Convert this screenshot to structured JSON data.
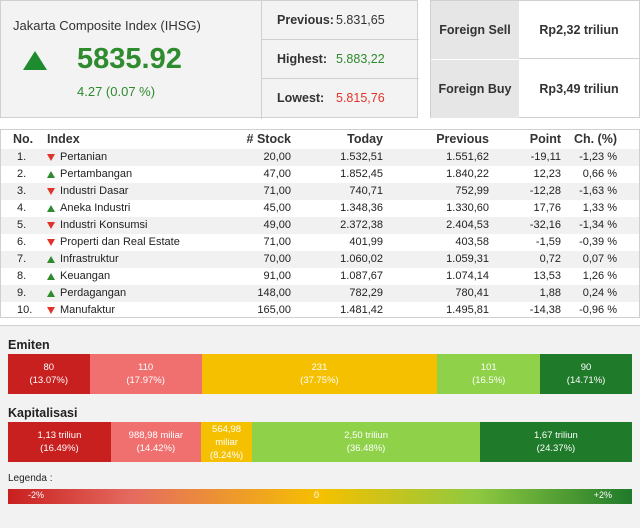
{
  "summary": {
    "title": "Jakarta Composite Index (IHSG)",
    "value": "5835.92",
    "change": "4.27 (0.07 %)",
    "stats": [
      {
        "label": "Previous:",
        "value": "5.831,65",
        "color": "#333333"
      },
      {
        "label": "Highest:",
        "value": "5.883,22",
        "color": "#2e8b2e"
      },
      {
        "label": "Lowest:",
        "value": "5.815,76",
        "color": "#e0342a"
      }
    ]
  },
  "foreign": [
    {
      "label": "Foreign Sell",
      "value": "Rp2,32 triliun"
    },
    {
      "label": "Foreign Buy",
      "value": "Rp3,49 triliun"
    }
  ],
  "table": {
    "headers": [
      "No.",
      "Index",
      "# Stock",
      "Today",
      "Previous",
      "Point",
      "Ch. (%)"
    ],
    "rows": [
      {
        "no": "1.",
        "dir": "down",
        "index": "Pertanian",
        "stock": "20,00",
        "today": "1.532,51",
        "prev": "1.551,62",
        "point": "-19,11",
        "ch": "-1,23 %"
      },
      {
        "no": "2.",
        "dir": "up",
        "index": "Pertambangan",
        "stock": "47,00",
        "today": "1.852,45",
        "prev": "1.840,22",
        "point": "12,23",
        "ch": "0,66 %"
      },
      {
        "no": "3.",
        "dir": "down",
        "index": "Industri Dasar",
        "stock": "71,00",
        "today": "740,71",
        "prev": "752,99",
        "point": "-12,28",
        "ch": "-1,63 %"
      },
      {
        "no": "4.",
        "dir": "up",
        "index": "Aneka Industri",
        "stock": "45,00",
        "today": "1.348,36",
        "prev": "1.330,60",
        "point": "17,76",
        "ch": "1,33 %"
      },
      {
        "no": "5.",
        "dir": "down",
        "index": "Industri Konsumsi",
        "stock": "49,00",
        "today": "2.372,38",
        "prev": "2.404,53",
        "point": "-32,16",
        "ch": "-1,34 %"
      },
      {
        "no": "6.",
        "dir": "down",
        "index": "Properti dan Real Estate",
        "stock": "71,00",
        "today": "401,99",
        "prev": "403,58",
        "point": "-1,59",
        "ch": "-0,39 %"
      },
      {
        "no": "7.",
        "dir": "up",
        "index": "Infrastruktur",
        "stock": "70,00",
        "today": "1.060,02",
        "prev": "1.059,31",
        "point": "0,72",
        "ch": "0,07 %"
      },
      {
        "no": "8.",
        "dir": "up",
        "index": "Keuangan",
        "stock": "91,00",
        "today": "1.087,67",
        "prev": "1.074,14",
        "point": "13,53",
        "ch": "1,26 %"
      },
      {
        "no": "9.",
        "dir": "up",
        "index": "Perdagangan",
        "stock": "148,00",
        "today": "782,29",
        "prev": "780,41",
        "point": "1,88",
        "ch": "0,24 %"
      },
      {
        "no": "10.",
        "dir": "down",
        "index": "Manufaktur",
        "stock": "165,00",
        "today": "1.481,42",
        "prev": "1.495,81",
        "point": "-14,38",
        "ch": "-0,96 %"
      }
    ]
  },
  "emiten": {
    "title": "Emiten",
    "segments": [
      {
        "value": "80",
        "pct": "(13.07%)",
        "share": 13.07,
        "color": "#c81f1f"
      },
      {
        "value": "110",
        "pct": "(17.97%)",
        "share": 17.97,
        "color": "#f07070"
      },
      {
        "value": "231",
        "pct": "(37.75%)",
        "share": 37.75,
        "color": "#f5c000"
      },
      {
        "value": "101",
        "pct": "(16.5%)",
        "share": 16.5,
        "color": "#8fd24a"
      },
      {
        "value": "90",
        "pct": "(14.71%)",
        "share": 14.71,
        "color": "#1f7a2a"
      }
    ]
  },
  "kapitalisasi": {
    "title": "Kapitalisasi",
    "segments": [
      {
        "value": "1,13 triliun",
        "pct": "(16.49%)",
        "share": 16.49,
        "color": "#c81f1f"
      },
      {
        "value": "988,98 miliar",
        "pct": "(14.42%)",
        "share": 14.42,
        "color": "#f07070"
      },
      {
        "value": "564,98 miliar",
        "pct": "(8.24%)",
        "share": 8.24,
        "color": "#f5c000"
      },
      {
        "value": "2,50 triliun",
        "pct": "(36.48%)",
        "share": 36.48,
        "color": "#8fd24a"
      },
      {
        "value": "1,67 triliun",
        "pct": "(24.37%)",
        "share": 24.37,
        "color": "#1f7a2a"
      }
    ]
  },
  "legend": {
    "label": "Legenda :",
    "min": "-2%",
    "mid": "0",
    "max": "+2%"
  },
  "colors": {
    "up": "#2e8b2e",
    "down": "#e0342a"
  }
}
